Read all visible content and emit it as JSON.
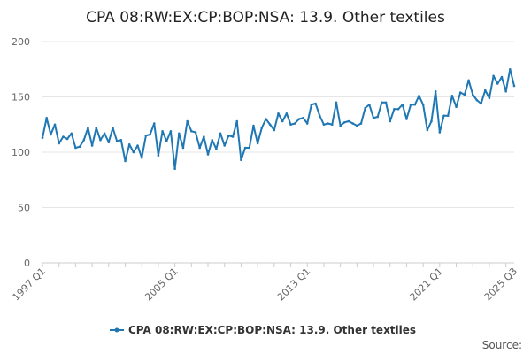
{
  "chart_data": {
    "type": "line",
    "title": "CPA 08:RW:EX:CP:BOP:NSA: 13.9. Other textiles",
    "xlabel": "",
    "ylabel": "",
    "x_range": [
      "1997 Q1",
      "2025 Q3"
    ],
    "x_tick_labels": [
      "1997 Q1",
      "2005 Q1",
      "2013 Q1",
      "2021 Q1",
      "2025 Q3"
    ],
    "ylim": [
      0,
      200
    ],
    "y_ticks": [
      0,
      50,
      100,
      150,
      200
    ],
    "grid": "horizontal",
    "legend_position": "bottom",
    "series": [
      {
        "name": "CPA 08:RW:EX:CP:BOP:NSA: 13.9. Other textiles",
        "color": "#1f77b4",
        "values": [
          113,
          131,
          116,
          125,
          108,
          114,
          112,
          117,
          104,
          105,
          111,
          122,
          106,
          122,
          111,
          117,
          109,
          122,
          110,
          111,
          92,
          107,
          100,
          106,
          95,
          115,
          116,
          126,
          97,
          119,
          110,
          119,
          85,
          117,
          104,
          128,
          119,
          118,
          104,
          114,
          98,
          111,
          103,
          117,
          106,
          115,
          114,
          128,
          93,
          104,
          104,
          124,
          108,
          122,
          130,
          125,
          120,
          135,
          128,
          135,
          125,
          126,
          130,
          131,
          126,
          143,
          144,
          133,
          125,
          126,
          125,
          145,
          124,
          127,
          128,
          126,
          124,
          126,
          140,
          143,
          131,
          132,
          145,
          145,
          128,
          139,
          139,
          143,
          130,
          143,
          143,
          151,
          143,
          120,
          128,
          155,
          118,
          133,
          133,
          151,
          141,
          154,
          152,
          165,
          152,
          147,
          144,
          156,
          149,
          169,
          162,
          168,
          155,
          175,
          160
        ]
      }
    ],
    "source_label": "Source:"
  }
}
